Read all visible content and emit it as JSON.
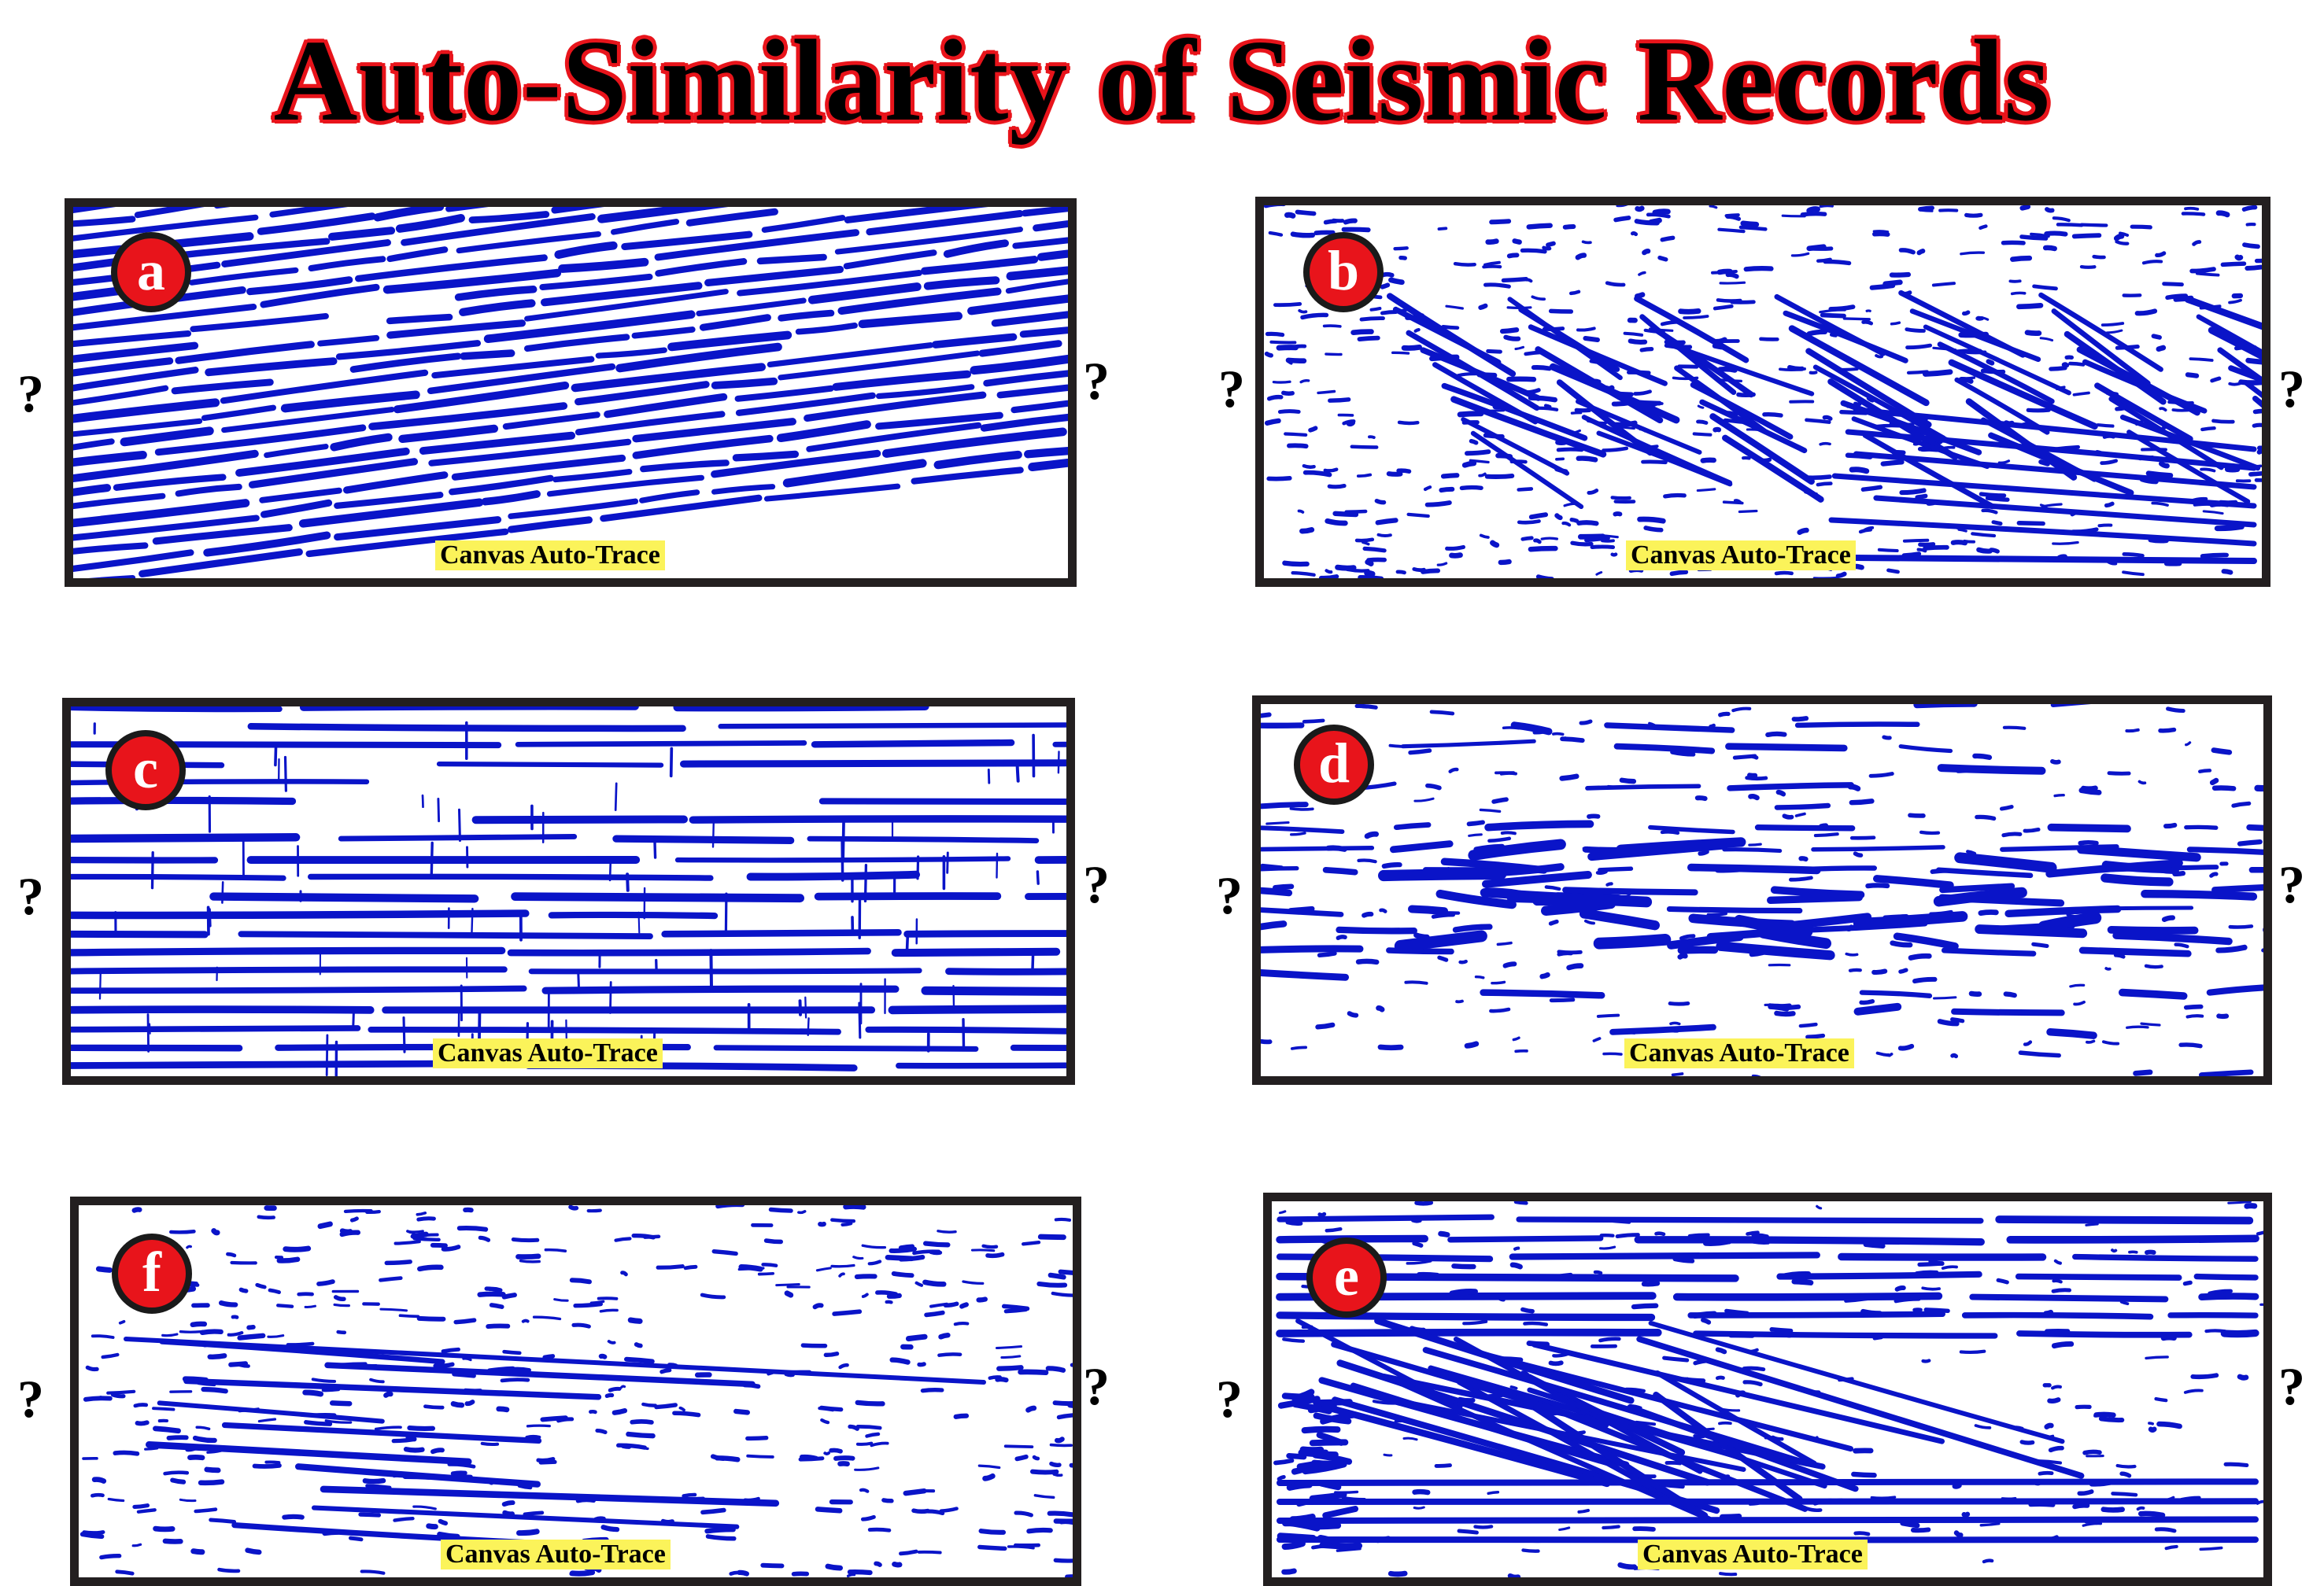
{
  "title": "Auto-Similarity of Seismic Records",
  "colors": {
    "trace": "#0a14c8",
    "badge": "#e8141b",
    "caption_bg": "#fbf35a",
    "frame": "#231f20"
  },
  "unknown_mark": "?",
  "panels": [
    {
      "id": "a",
      "label": "a",
      "caption": "Canvas Auto-Trace",
      "pattern": "dense-dipping-reflectors"
    },
    {
      "id": "b",
      "label": "b",
      "caption": "Canvas Auto-Trace",
      "pattern": "sparse-prograding-clinoforms"
    },
    {
      "id": "c",
      "label": "c",
      "caption": "Canvas Auto-Trace",
      "pattern": "parallel-continuous-reflectors"
    },
    {
      "id": "d",
      "label": "d",
      "caption": "Canvas Auto-Trace",
      "pattern": "chaotic-mounded-reflectors"
    },
    {
      "id": "f",
      "label": "f",
      "caption": "Canvas Auto-Trace",
      "pattern": "sparse-subparallel-reflectors"
    },
    {
      "id": "e",
      "label": "e",
      "caption": "Canvas Auto-Trace",
      "pattern": "clinoforms-with-parallel-top-and-base"
    }
  ]
}
